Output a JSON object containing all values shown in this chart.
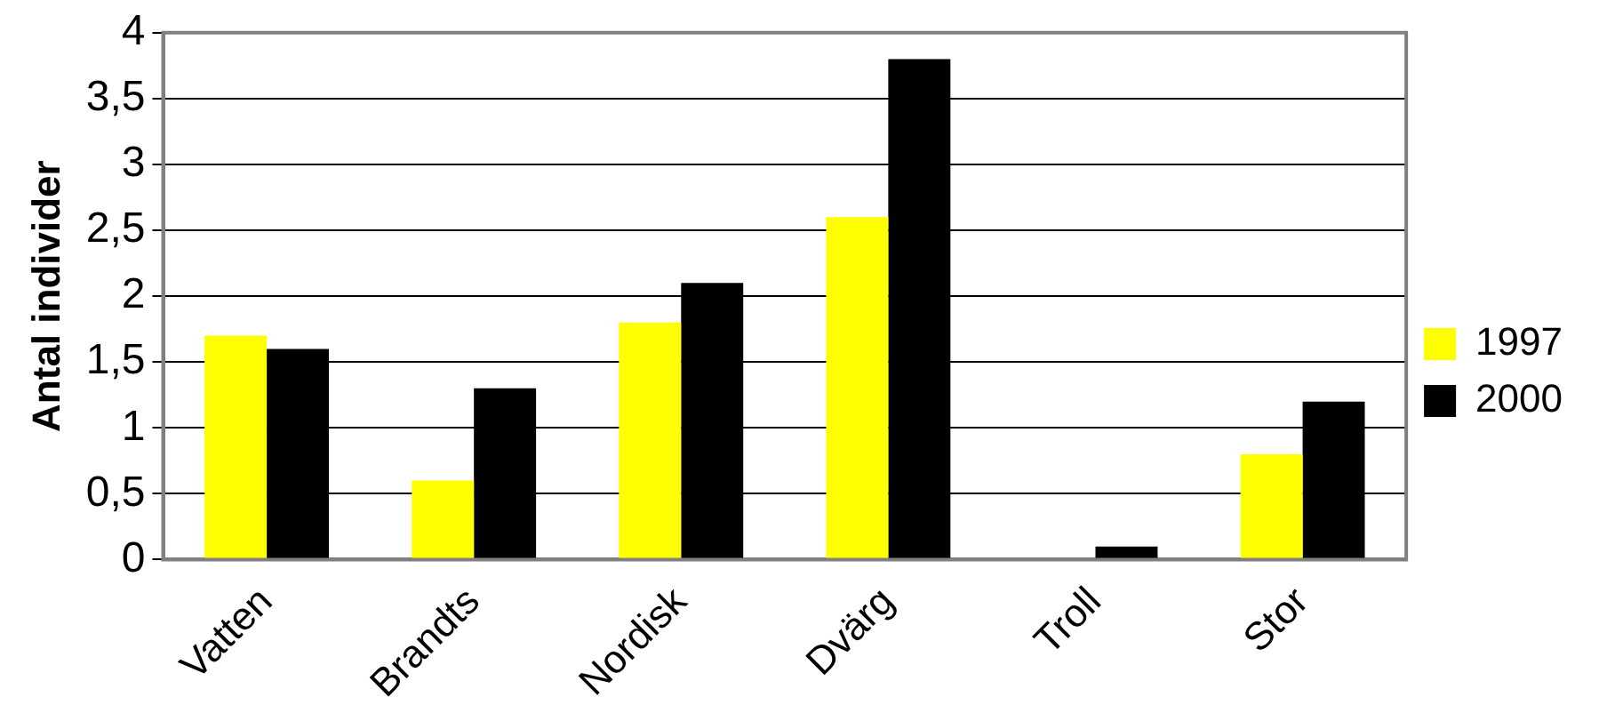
{
  "chart_data": {
    "type": "bar",
    "ylabel": "Antal individer",
    "categories": [
      "Vatten",
      "Brandts",
      "Nordisk",
      "Dvärg",
      "Troll",
      "Stor"
    ],
    "series": [
      {
        "name": "1997",
        "color": "#ffff00",
        "values": [
          1.7,
          0.6,
          1.8,
          2.6,
          0,
          0.8
        ]
      },
      {
        "name": "2000",
        "color": "#000000",
        "values": [
          1.6,
          1.3,
          2.1,
          3.8,
          0.1,
          1.2
        ]
      }
    ],
    "ylim": [
      0,
      4
    ],
    "yticks": [
      0,
      {
        "value": 0.5,
        "label": "0,5"
      },
      1,
      {
        "value": 1.5,
        "label": "1,5"
      },
      2,
      {
        "value": 2.5,
        "label": "2,5"
      },
      3,
      {
        "value": 3.5,
        "label": "3,5"
      },
      4
    ],
    "grid": "y",
    "legend": "right"
  }
}
